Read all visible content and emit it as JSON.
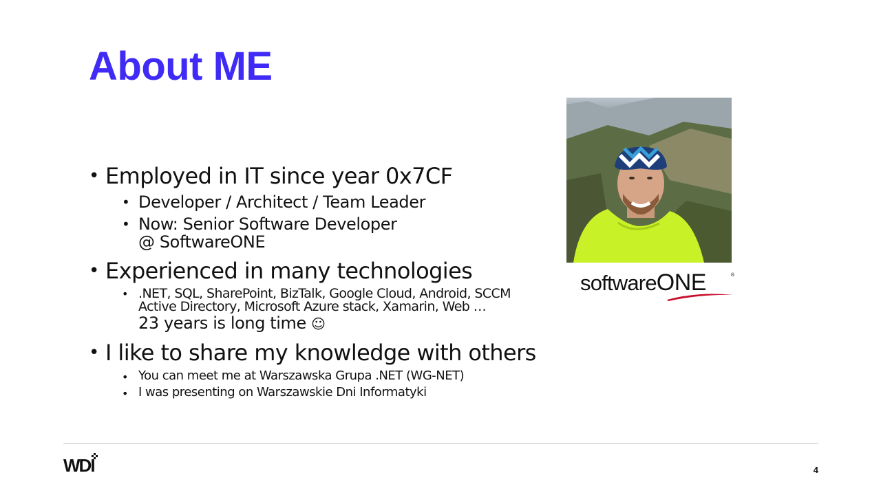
{
  "slide": {
    "title": "About ME",
    "page_number": "4"
  },
  "bullets": {
    "employed": "Employed in IT since year 0x7CF",
    "roles": "Developer / Architect / Team Leader",
    "now_line1": "Now: Senior Software Developer",
    "now_line2": "@ SoftwareONE",
    "experienced": "Experienced in many technologies",
    "tech_line1": ".NET, SQL, SharePoint, BizTalk, Google Cloud, Android, SCCM",
    "tech_line2": "Active Directory, Microsoft Azure stack, Xamarin, Web …",
    "years": "23 years is long time",
    "smiley": "☺",
    "share": "I like to share my knowledge with others",
    "meet": "You can meet me at Warszawska Grupa .NET (WG-NET)",
    "presenting": "I was presenting on Warszawskie Dni Informatyki"
  },
  "company_logo": {
    "text_lower": "software",
    "text_upper": "ONE",
    "registered": "®",
    "swoosh_color": "#c8102e"
  },
  "footer_logo": {
    "text": "WDI"
  },
  "colors": {
    "title": "#3f2bf5",
    "rule": "#c9c9c9",
    "jersey": "#c8f227"
  }
}
